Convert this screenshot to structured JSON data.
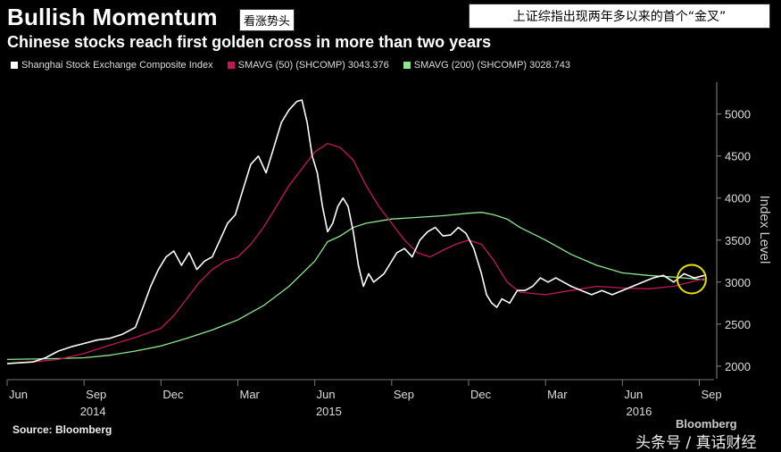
{
  "header": {
    "title": "Bullish Momentum",
    "tag_cn": "看涨势头",
    "subtitle": "Chinese stocks reach first golden cross in more than two years",
    "right_caption": "上证综指出现两年多以来的首个“金叉”"
  },
  "legend": [
    {
      "label": "Shanghai Stock Exchange Composite Index",
      "color": "#ffffff"
    },
    {
      "label": "SMAVG (50) (SHCOMP) 3043.376",
      "color": "#c2185b"
    },
    {
      "label": "SMAVG (200) (SHCOMP) 3028.743",
      "color": "#8ee68e"
    }
  ],
  "footer": {
    "source": "Source: Bloomberg",
    "brand": "Bloomberg",
    "watermark": "头条号 / 真话财经"
  },
  "chart_data": {
    "type": "line",
    "ylabel": "Index Level",
    "ylim": [
      1850,
      5400
    ],
    "yticks": [
      2000,
      2500,
      3000,
      3500,
      4000,
      4500,
      5000
    ],
    "xlim": [
      0,
      27.4
    ],
    "month_ticks": [
      {
        "m": 0,
        "label": "Jun"
      },
      {
        "m": 3,
        "label": "Sep"
      },
      {
        "m": 6,
        "label": "Dec"
      },
      {
        "m": 9,
        "label": "Mar"
      },
      {
        "m": 12,
        "label": "Jun"
      },
      {
        "m": 15,
        "label": "Sep"
      },
      {
        "m": 18,
        "label": "Dec"
      },
      {
        "m": 21,
        "label": "Mar"
      },
      {
        "m": 24,
        "label": "Jun"
      },
      {
        "m": 27,
        "label": "Sep"
      }
    ],
    "year_labels": [
      {
        "m": 3,
        "label": "2014"
      },
      {
        "m": 12.2,
        "label": "2015"
      },
      {
        "m": 24.3,
        "label": "2016"
      }
    ],
    "series": [
      {
        "name": "Shanghai Stock Exchange Composite Index",
        "color": "#ffffff",
        "x": [
          0,
          0.5,
          1,
          1.5,
          2,
          2.5,
          3,
          3.5,
          4,
          4.5,
          5,
          5.3,
          5.6,
          5.9,
          6.2,
          6.5,
          6.8,
          7.1,
          7.4,
          7.7,
          8,
          8.3,
          8.6,
          8.9,
          9.2,
          9.5,
          9.8,
          10.1,
          10.4,
          10.7,
          11,
          11.3,
          11.5,
          11.7,
          11.9,
          12.1,
          12.3,
          12.5,
          12.7,
          12.9,
          13.1,
          13.3,
          13.5,
          13.7,
          13.9,
          14.1,
          14.3,
          14.5,
          14.7,
          14.9,
          15.2,
          15.5,
          15.8,
          16.1,
          16.4,
          16.7,
          17,
          17.3,
          17.6,
          17.9,
          18.2,
          18.5,
          18.7,
          18.9,
          19.1,
          19.3,
          19.6,
          19.9,
          20.2,
          20.5,
          20.8,
          21.1,
          21.4,
          21.7,
          22,
          22.4,
          22.8,
          23.2,
          23.6,
          24,
          24.4,
          24.8,
          25.2,
          25.6,
          26,
          26.4,
          26.8,
          27.2
        ],
        "values": [
          2030,
          2040,
          2050,
          2100,
          2180,
          2230,
          2270,
          2310,
          2330,
          2380,
          2460,
          2700,
          2950,
          3150,
          3300,
          3370,
          3200,
          3350,
          3150,
          3250,
          3300,
          3500,
          3700,
          3800,
          4100,
          4400,
          4500,
          4300,
          4600,
          4900,
          5050,
          5150,
          5166,
          4900,
          4500,
          4300,
          3900,
          3600,
          3700,
          3900,
          4000,
          3900,
          3600,
          3200,
          2950,
          3100,
          3000,
          3050,
          3100,
          3200,
          3350,
          3400,
          3300,
          3500,
          3600,
          3650,
          3550,
          3560,
          3650,
          3580,
          3400,
          3100,
          2850,
          2750,
          2700,
          2800,
          2750,
          2900,
          2900,
          2950,
          3050,
          3000,
          3050,
          3000,
          2950,
          2900,
          2850,
          2900,
          2850,
          2900,
          2950,
          3000,
          3050,
          3080,
          3000,
          3100,
          3050,
          3080
        ]
      },
      {
        "name": "SMAVG (50) (SHCOMP) 3043.376",
        "color": "#c2185b",
        "x": [
          0,
          1,
          2,
          3,
          4,
          5,
          6,
          6.5,
          7,
          7.5,
          8,
          8.5,
          9,
          9.5,
          10,
          10.5,
          11,
          11.5,
          12,
          12.5,
          13,
          13.5,
          14,
          14.5,
          15,
          15.5,
          16,
          16.5,
          17,
          17.5,
          18,
          18.5,
          19,
          19.5,
          20,
          21,
          22,
          23,
          24,
          25,
          26,
          27.2
        ],
        "values": [
          2030,
          2050,
          2080,
          2150,
          2250,
          2340,
          2450,
          2600,
          2800,
          3000,
          3150,
          3250,
          3300,
          3450,
          3650,
          3900,
          4150,
          4350,
          4550,
          4650,
          4600,
          4450,
          4150,
          3900,
          3700,
          3500,
          3350,
          3300,
          3380,
          3450,
          3500,
          3450,
          3250,
          3000,
          2880,
          2850,
          2900,
          2950,
          2930,
          2920,
          2950,
          3043
        ]
      },
      {
        "name": "SMAVG (200) (SHCOMP) 3028.743",
        "color": "#8ee68e",
        "x": [
          0,
          1,
          2,
          3,
          4,
          5,
          6,
          7,
          8,
          9,
          10,
          11,
          12,
          12.5,
          13,
          13.5,
          14,
          15,
          16,
          17,
          18,
          18.5,
          19,
          19.5,
          20,
          21,
          22,
          23,
          24,
          25,
          26,
          27.2
        ],
        "values": [
          2080,
          2085,
          2090,
          2100,
          2130,
          2180,
          2240,
          2330,
          2430,
          2550,
          2720,
          2950,
          3250,
          3480,
          3550,
          3650,
          3700,
          3750,
          3770,
          3790,
          3820,
          3830,
          3800,
          3750,
          3650,
          3500,
          3330,
          3200,
          3110,
          3080,
          3060,
          3029
        ]
      }
    ],
    "highlight": {
      "m": 26.7,
      "value": 3035
    }
  }
}
